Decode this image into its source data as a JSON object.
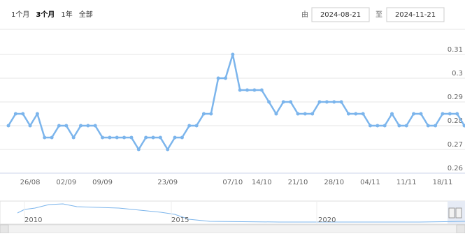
{
  "range_selector": {
    "buttons": [
      "1个月",
      "3个月",
      "1年",
      "全部"
    ],
    "active": 1,
    "from_label": "由",
    "from": "2024-08-21",
    "to_label": "至",
    "to": "2024-11-21"
  },
  "chart_data": {
    "type": "line",
    "color": "#7cb5ec",
    "categories": [
      null,
      null,
      null,
      "26/08",
      null,
      null,
      null,
      null,
      "02/09",
      null,
      null,
      null,
      null,
      "09/09",
      null,
      null,
      null,
      null,
      null,
      null,
      null,
      null,
      "23/09",
      null,
      null,
      null,
      null,
      null,
      null,
      null,
      null,
      "07/10",
      null,
      null,
      null,
      "14/10",
      null,
      null,
      null,
      null,
      "21/10",
      null,
      null,
      null,
      null,
      "28/10",
      null,
      null,
      null,
      null,
      "04/11",
      null,
      null,
      null,
      null,
      "11/11",
      null,
      null,
      null,
      null,
      "18/11",
      null,
      null,
      null
    ],
    "values": [
      0.28,
      0.285,
      0.285,
      0.28,
      0.285,
      0.275,
      0.275,
      0.28,
      0.28,
      0.275,
      0.28,
      0.28,
      0.28,
      0.275,
      0.275,
      0.275,
      0.275,
      0.275,
      0.27,
      0.275,
      0.275,
      0.275,
      0.27,
      0.275,
      0.275,
      0.28,
      0.28,
      0.285,
      0.285,
      0.3,
      0.3,
      0.31,
      0.295,
      0.295,
      0.295,
      0.295,
      0.29,
      0.285,
      0.29,
      0.29,
      0.285,
      0.285,
      0.285,
      0.29,
      0.29,
      0.29,
      0.29,
      0.285,
      0.285,
      0.285,
      0.28,
      0.28,
      0.28,
      0.285,
      0.28,
      0.28,
      0.285,
      0.285,
      0.28,
      0.28,
      0.285,
      0.285,
      0.285,
      0.28
    ],
    "ylim": [
      0.26,
      0.32
    ],
    "yticks": [
      0.26,
      0.27,
      0.28,
      0.29,
      0.3,
      0.31
    ],
    "grid": true
  },
  "navigator": {
    "labels": [
      "2010",
      "2015",
      "2020"
    ]
  }
}
